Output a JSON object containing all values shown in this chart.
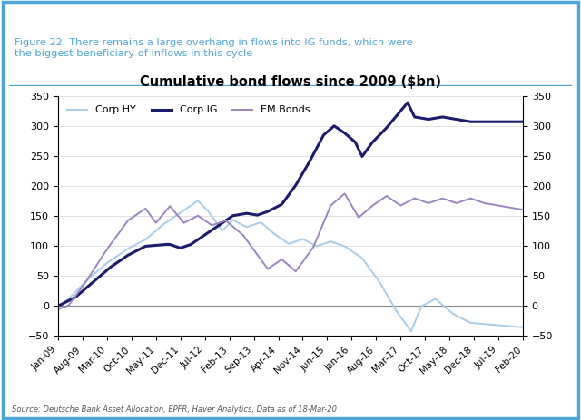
{
  "title": "Cumulative bond flows since 2009 ($bn)",
  "figure_caption": "Figure 22: There remains a large overhang in flows into IG funds, which were\nthe biggest beneficiary of inflows in this cycle",
  "source_text": "Source: Deutsche Bank Asset Allocation, EPFR, Haver Analytics, Data as of 18-Mar-20",
  "ylim": [
    -50,
    350
  ],
  "yticks": [
    -50,
    0,
    50,
    100,
    150,
    200,
    250,
    300,
    350
  ],
  "corp_hy_color": "#aacce8",
  "corp_ig_color": "#1c1c6e",
  "em_bonds_color": "#9b85c0",
  "legend_entries": [
    "Corp HY",
    "Corp IG",
    "EM Bonds"
  ],
  "x_labels": [
    "Jan-09",
    "Aug-09",
    "Mar-10",
    "Oct-10",
    "May-11",
    "Dec-11",
    "Jul-12",
    "Feb-13",
    "Sep-13",
    "Apr-14",
    "Nov-14",
    "Jun-15",
    "Jan-16",
    "Aug-16",
    "Mar-17",
    "Oct-17",
    "May-18",
    "Dec-18",
    "Jul-19",
    "Feb-20"
  ],
  "background_color": "#ffffff",
  "border_color": "#4da6d6",
  "caption_color": "#4da6d6",
  "grid_color": "#dddddd",
  "source_color": "#555555"
}
